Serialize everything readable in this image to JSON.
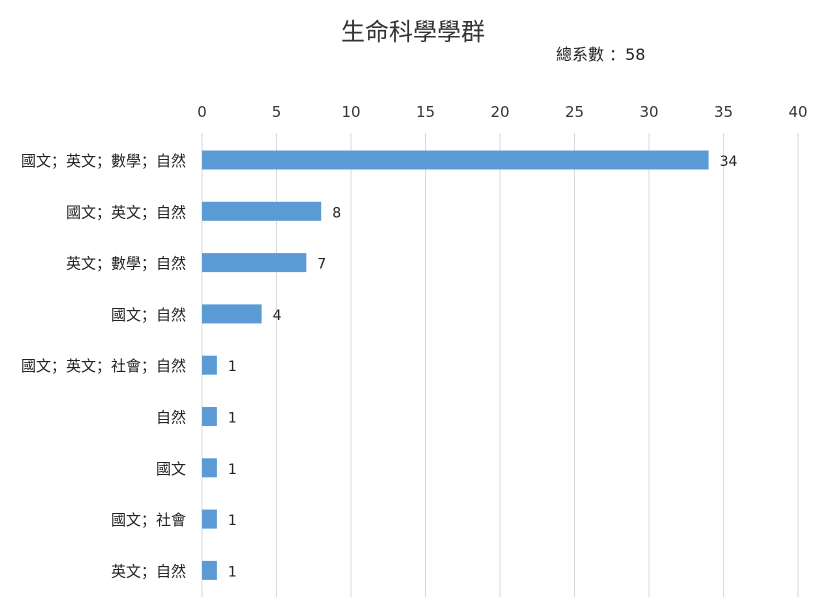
{
  "chart_data": {
    "type": "bar",
    "orientation": "horizontal",
    "title": "生命科學學群",
    "subtitle": "總系數 ：58",
    "categories": [
      "國文；英文；數學；自然",
      "國文；英文；自然",
      "英文；數學；自然",
      "國文；自然",
      "國文；英文；社會；自然",
      "自然",
      "國文",
      "國文；社會",
      "英文；自然"
    ],
    "values": [
      34,
      8,
      7,
      4,
      1,
      1,
      1,
      1,
      1
    ],
    "data_labels": [
      "34",
      "8",
      "7",
      "4",
      "1",
      "1",
      "1",
      "1",
      "1"
    ],
    "xlim": [
      0,
      40
    ],
    "x_ticks": [
      "0",
      "5",
      "10",
      "15",
      "20",
      "25",
      "30",
      "35",
      "40"
    ],
    "x_axis_position": "top",
    "grid": true,
    "legend": "none",
    "bar_color": "#5B9BD5",
    "grid_color": "#D9D9D9"
  }
}
